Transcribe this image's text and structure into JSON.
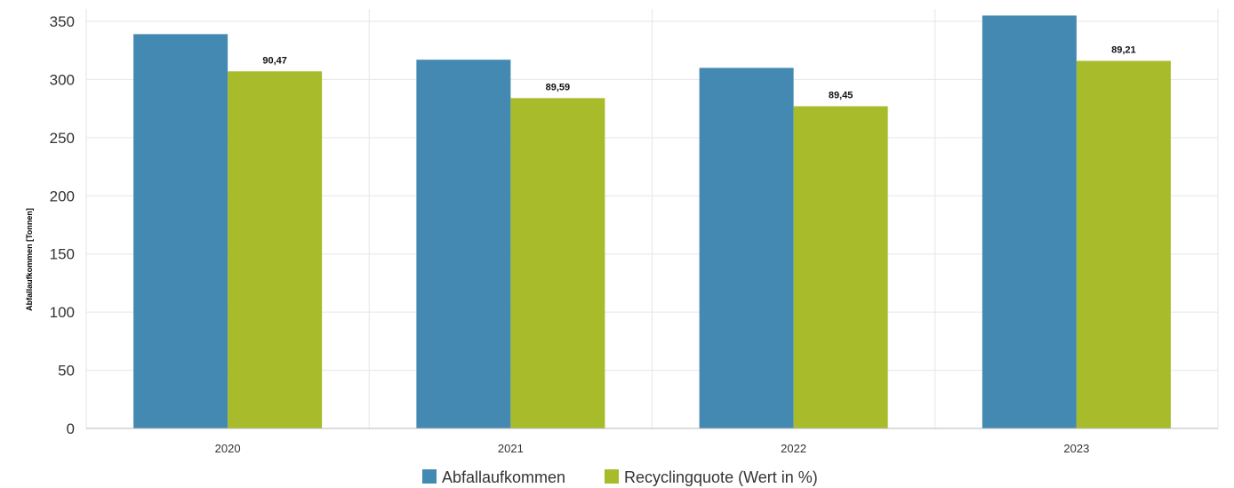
{
  "chart_data": {
    "type": "bar",
    "categories": [
      "2020",
      "2021",
      "2022",
      "2023"
    ],
    "series": [
      {
        "name": "Abfallaufkommen",
        "color": "#4389b2",
        "values": [
          339,
          317,
          310,
          355
        ]
      },
      {
        "name": "Recyclingquote (Wert in %)",
        "color": "#a8bb2a",
        "values": [
          307,
          284,
          277,
          316
        ],
        "data_labels": [
          "90,47",
          "89,59",
          "89,45",
          "89,21"
        ]
      }
    ],
    "title": "",
    "xlabel": "",
    "ylabel": "Abfallaufkommen [Tonnen]",
    "ylim": [
      0,
      350
    ],
    "yticks": [
      "0",
      "50",
      "100",
      "150",
      "200",
      "250",
      "300",
      "350"
    ],
    "grid": true,
    "legend": "bottom-center"
  }
}
